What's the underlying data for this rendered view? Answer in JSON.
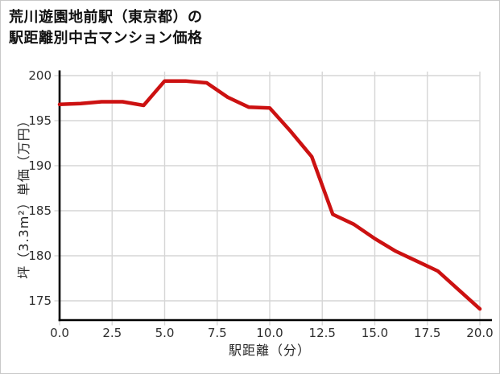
{
  "title": {
    "line1": "荒川遊園地前駅（東京都）の",
    "line2": "駅距離別中古マンション価格"
  },
  "chart_data": {
    "type": "line",
    "title": "荒川遊園地前駅（東京都）の駅距離別中古マンション価格",
    "xlabel": "駅距離（分）",
    "ylabel": "坪（3.3m²）単価（万円）",
    "x": [
      0,
      1,
      2,
      3,
      4,
      5,
      6,
      7,
      8,
      9,
      10,
      11,
      12,
      13,
      14,
      15,
      16,
      17,
      18,
      19,
      20
    ],
    "y": [
      196.8,
      196.9,
      197.1,
      197.1,
      196.7,
      199.4,
      199.4,
      199.2,
      197.6,
      196.5,
      196.4,
      193.8,
      191.0,
      184.6,
      183.5,
      181.9,
      180.5,
      179.4,
      178.3,
      176.2,
      174.1
    ],
    "xlim": [
      0,
      20.6
    ],
    "ylim": [
      172.8,
      200.5
    ],
    "xticks": [
      0.0,
      2.5,
      5.0,
      7.5,
      10.0,
      12.5,
      15.0,
      17.5,
      20.0
    ],
    "xtick_labels": [
      "0.0",
      "2.5",
      "5.0",
      "7.5",
      "10.0",
      "12.5",
      "15.0",
      "17.5",
      "20.0"
    ],
    "yticks": [
      175,
      180,
      185,
      190,
      195,
      200
    ],
    "ytick_labels": [
      "175",
      "180",
      "185",
      "190",
      "195",
      "200"
    ],
    "grid": true,
    "legend": false,
    "line_color": "#cc1111",
    "grid_color": "#d6d6d6",
    "spine_color": "#000000",
    "text_color": "#2e2e2e"
  }
}
